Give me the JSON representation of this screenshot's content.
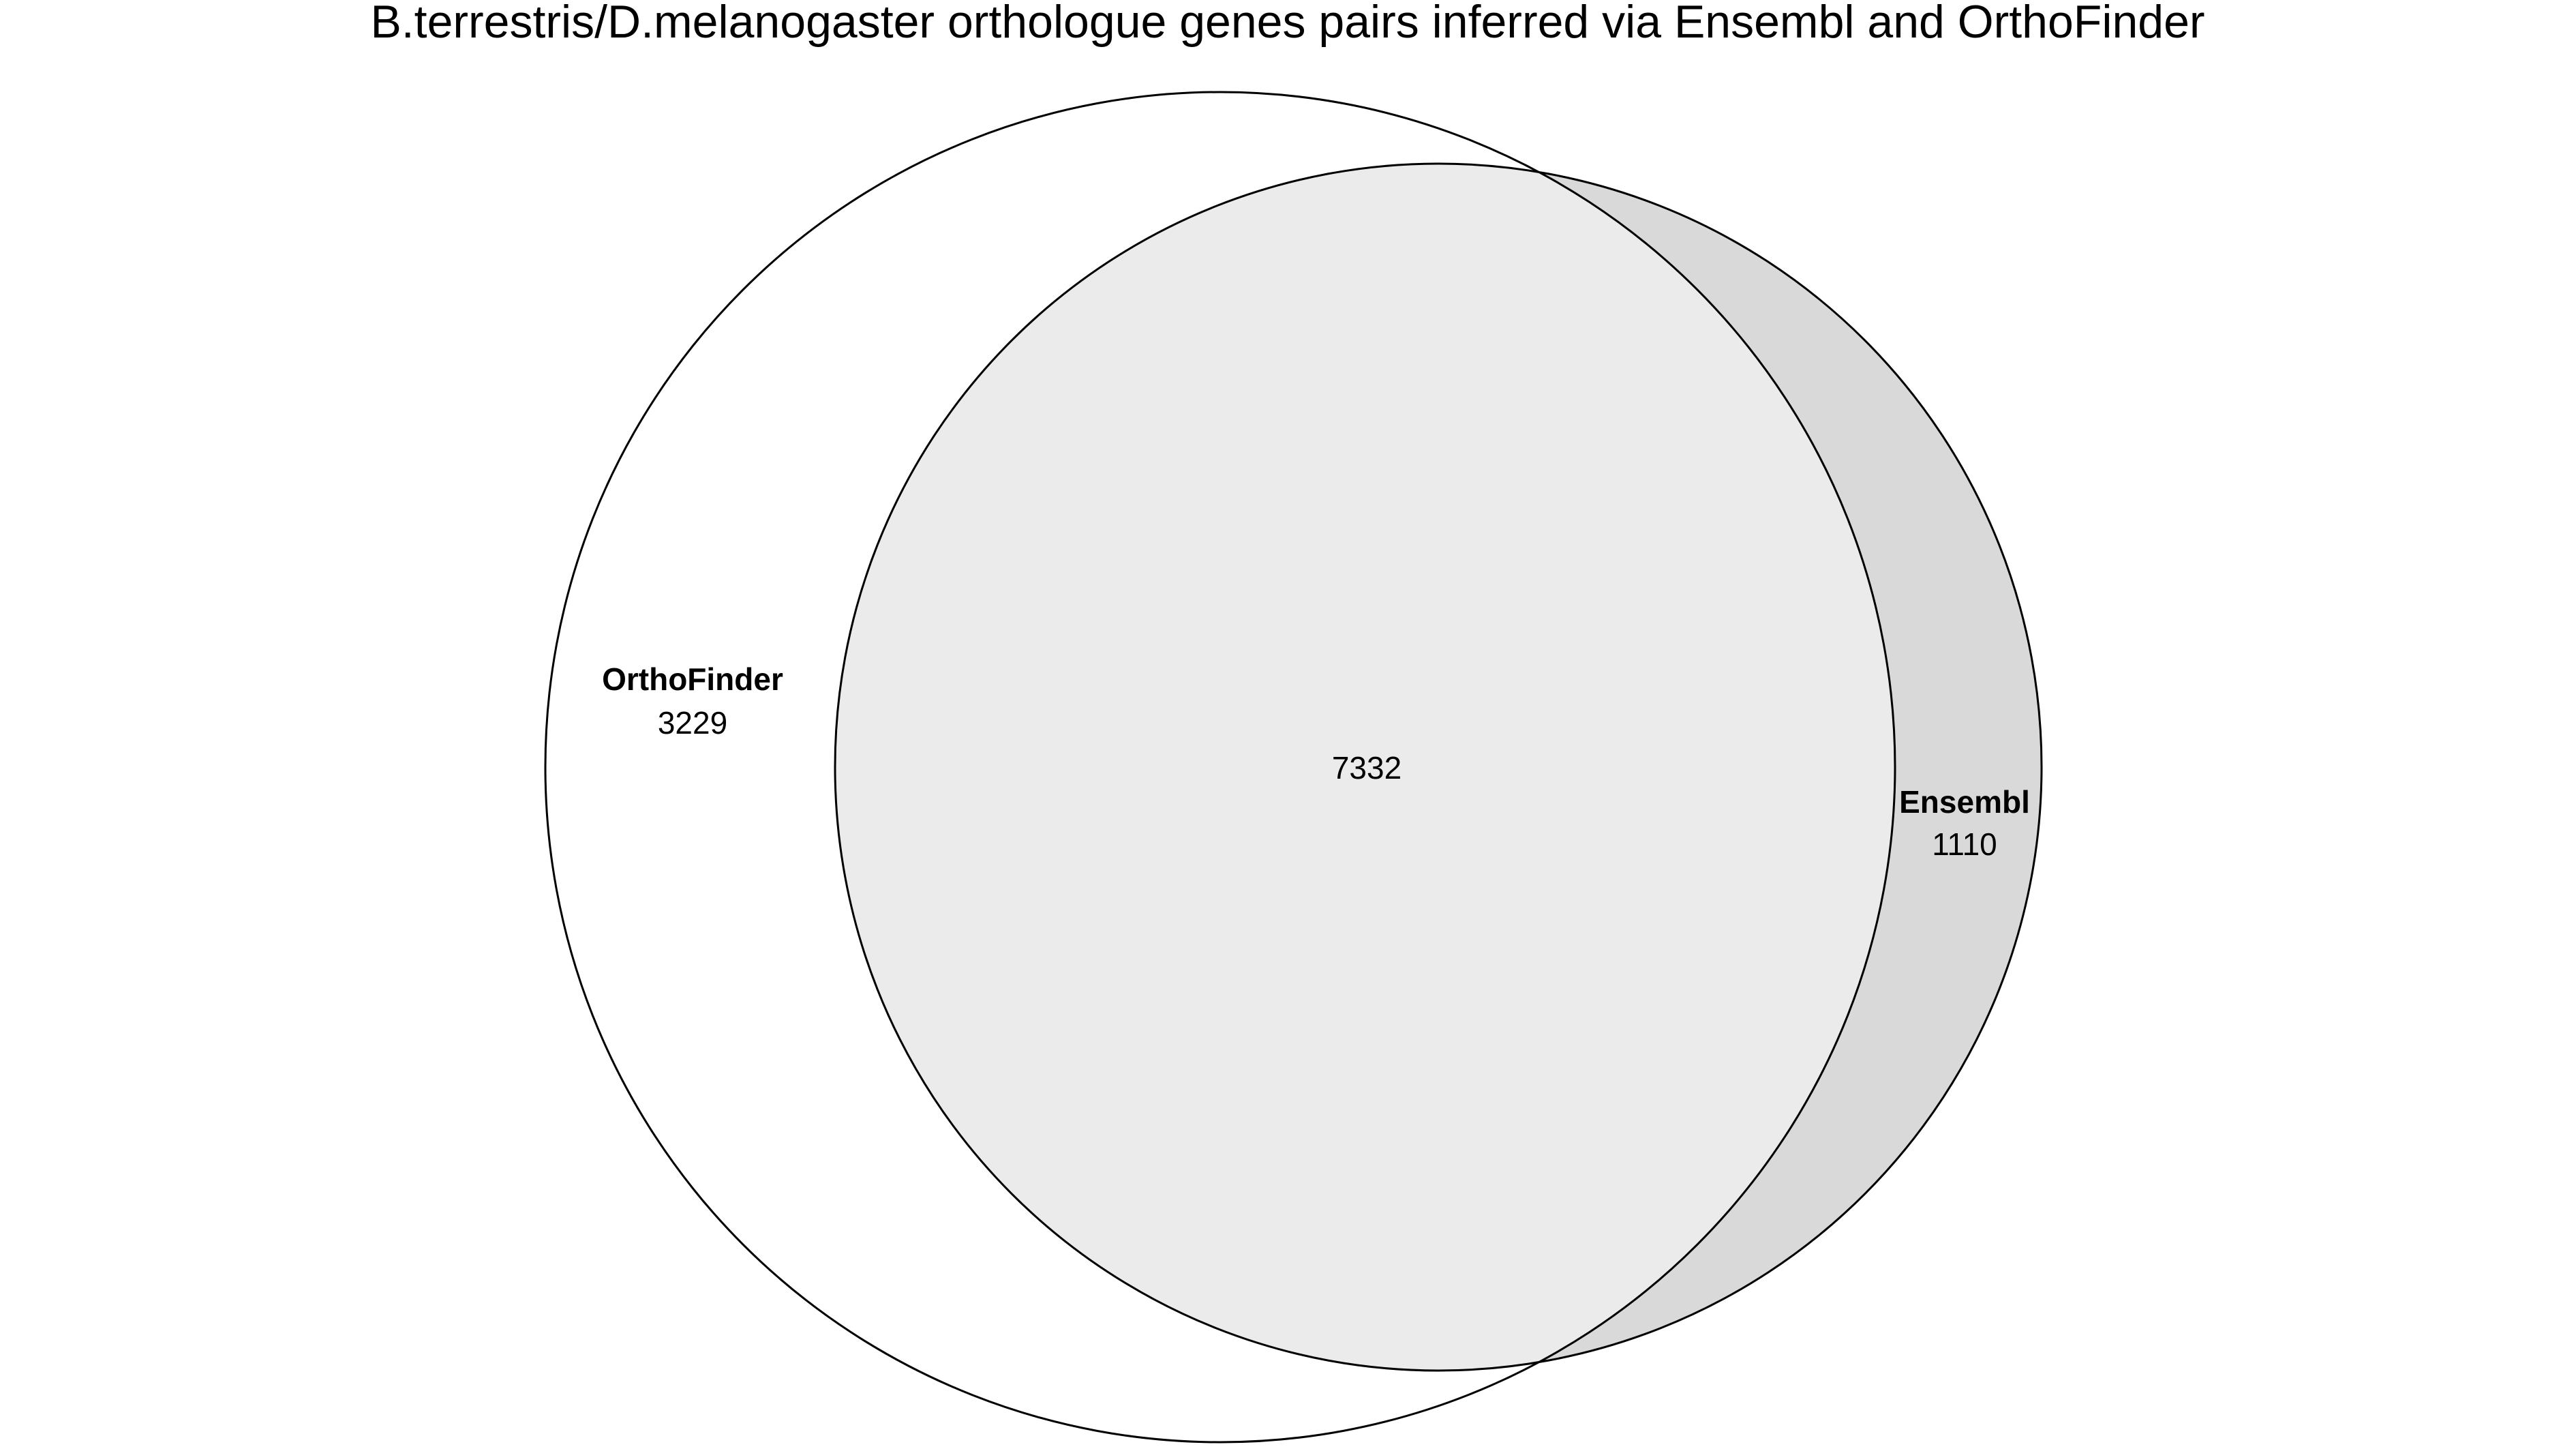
{
  "title": "B.terrestris/D.melanogaster orthologue genes pairs inferred via Ensembl and OrthoFinder",
  "sets": [
    {
      "name": "OrthoFinder",
      "only_count": "3229",
      "fill": "#ffffff"
    },
    {
      "name": "Ensembl",
      "only_count": "1110",
      "fill": "#d9d9d9"
    }
  ],
  "intersection": {
    "count": "7332",
    "fill": "#ebebeb"
  },
  "outline_color": "#000000"
}
